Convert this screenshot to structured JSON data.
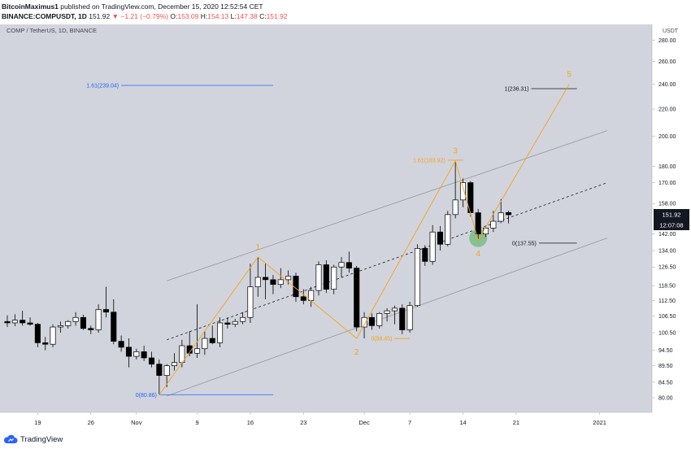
{
  "header": {
    "publisher": "BitcoinMaximus1",
    "published_text": "published on TradingView.com, December 15, 2020 12:52:54 CET",
    "symbol_line": "BINANCE:COMPUSDT, 1D",
    "last": "151.92",
    "change": "−1.21 (−0.79%)",
    "open_label": "O:",
    "open": "153.09",
    "high_label": "H:",
    "high": "154.13",
    "low_label": "L:",
    "low": "147.38",
    "close_label": "C:",
    "close": "151.92"
  },
  "footer": {
    "brand": "TradingView"
  },
  "colors": {
    "plot_bg": "#d1d4dc",
    "up": "#ffffff",
    "down": "#000000",
    "wave": "#f7a21b",
    "fib_blue": "#2962ff",
    "channel": "#9598a1",
    "label_bg": "#131722"
  },
  "chart_data": {
    "type": "candlestick",
    "title": "COMP / TetherUS, 1D, BINANCE",
    "currency": "USDT",
    "y_scale": "log",
    "ylim": [
      76,
      296
    ],
    "y_ticks": [
      80.0,
      84.5,
      89.5,
      94.5,
      100.5,
      106.5,
      112.5,
      118.5,
      126.5,
      134.0,
      142.0,
      158.0,
      170.0,
      180.0,
      200.0,
      220.0,
      240.0,
      260.0,
      280.0
    ],
    "y_tick_labels": [
      "80.00",
      "84.50",
      "89.50",
      "94.50",
      "100.50",
      "106.50",
      "112.50",
      "118.50",
      "126.50",
      "134.00",
      "142.00",
      "158.00",
      "170.00",
      "180.00",
      "200.00",
      "220.00",
      "240.00",
      "260.00",
      "280.00"
    ],
    "x_labels": [
      {
        "label": "19",
        "date": "2020-10-19"
      },
      {
        "label": "26",
        "date": "2020-10-26"
      },
      {
        "label": "Nov",
        "date": "2020-11-01"
      },
      {
        "label": "9",
        "date": "2020-11-09"
      },
      {
        "label": "16",
        "date": "2020-11-16"
      },
      {
        "label": "23",
        "date": "2020-11-23"
      },
      {
        "label": "Dec",
        "date": "2020-12-01"
      },
      {
        "label": "7",
        "date": "2020-12-07"
      },
      {
        "label": "14",
        "date": "2020-12-14"
      },
      {
        "label": "21",
        "date": "2020-12-21"
      },
      {
        "label": "2021",
        "date": "2021-01-01"
      }
    ],
    "x_range": [
      "2020-10-15",
      "2021-01-05"
    ],
    "last_price": {
      "value": "151.92",
      "countdown": "12:07:08"
    },
    "candles": [
      {
        "date": "2020-10-15",
        "o": 104.5,
        "h": 106.8,
        "l": 102.5,
        "c": 104.0
      },
      {
        "date": "2020-10-16",
        "o": 104.0,
        "h": 107.2,
        "l": 102.8,
        "c": 105.0
      },
      {
        "date": "2020-10-17",
        "o": 105.0,
        "h": 108.5,
        "l": 103.0,
        "c": 104.0
      },
      {
        "date": "2020-10-18",
        "o": 104.0,
        "h": 106.0,
        "l": 103.0,
        "c": 103.5
      },
      {
        "date": "2020-10-19",
        "o": 103.5,
        "h": 104.0,
        "l": 95.5,
        "c": 97.0
      },
      {
        "date": "2020-10-20",
        "o": 97.0,
        "h": 99.0,
        "l": 94.5,
        "c": 96.5
      },
      {
        "date": "2020-10-21",
        "o": 96.5,
        "h": 103.5,
        "l": 95.5,
        "c": 102.5
      },
      {
        "date": "2020-10-22",
        "o": 102.5,
        "h": 104.5,
        "l": 100.5,
        "c": 103.0
      },
      {
        "date": "2020-10-23",
        "o": 103.0,
        "h": 105.0,
        "l": 102.0,
        "c": 104.5
      },
      {
        "date": "2020-10-24",
        "o": 104.5,
        "h": 108.0,
        "l": 103.0,
        "c": 106.0
      },
      {
        "date": "2020-10-25",
        "o": 106.0,
        "h": 107.0,
        "l": 101.5,
        "c": 102.0
      },
      {
        "date": "2020-10-26",
        "o": 102.0,
        "h": 103.0,
        "l": 100.0,
        "c": 101.5
      },
      {
        "date": "2020-10-27",
        "o": 101.5,
        "h": 111.0,
        "l": 100.5,
        "c": 109.0
      },
      {
        "date": "2020-10-28",
        "o": 109.0,
        "h": 118.0,
        "l": 106.0,
        "c": 108.0
      },
      {
        "date": "2020-10-29",
        "o": 108.0,
        "h": 113.0,
        "l": 96.5,
        "c": 97.5
      },
      {
        "date": "2020-10-30",
        "o": 97.5,
        "h": 99.5,
        "l": 94.0,
        "c": 95.5
      },
      {
        "date": "2020-10-31",
        "o": 95.5,
        "h": 98.5,
        "l": 89.0,
        "c": 92.5
      },
      {
        "date": "2020-11-01",
        "o": 92.5,
        "h": 95.0,
        "l": 91.5,
        "c": 94.0
      },
      {
        "date": "2020-11-02",
        "o": 94.0,
        "h": 96.0,
        "l": 91.0,
        "c": 92.0
      },
      {
        "date": "2020-11-03",
        "o": 92.0,
        "h": 94.0,
        "l": 89.0,
        "c": 90.0
      },
      {
        "date": "2020-11-04",
        "o": 90.0,
        "h": 91.5,
        "l": 80.9,
        "c": 86.5
      },
      {
        "date": "2020-11-05",
        "o": 86.5,
        "h": 90.0,
        "l": 83.0,
        "c": 89.5
      },
      {
        "date": "2020-11-06",
        "o": 89.5,
        "h": 93.5,
        "l": 88.0,
        "c": 90.5
      },
      {
        "date": "2020-11-07",
        "o": 90.5,
        "h": 98.0,
        "l": 89.0,
        "c": 96.0
      },
      {
        "date": "2020-11-08",
        "o": 96.0,
        "h": 101.0,
        "l": 92.5,
        "c": 93.5
      },
      {
        "date": "2020-11-09",
        "o": 93.5,
        "h": 111.0,
        "l": 92.0,
        "c": 95.0
      },
      {
        "date": "2020-11-10",
        "o": 95.0,
        "h": 101.0,
        "l": 93.0,
        "c": 98.5
      },
      {
        "date": "2020-11-11",
        "o": 98.5,
        "h": 103.0,
        "l": 96.5,
        "c": 97.0
      },
      {
        "date": "2020-11-12",
        "o": 97.0,
        "h": 106.0,
        "l": 95.5,
        "c": 104.0
      },
      {
        "date": "2020-11-13",
        "o": 104.0,
        "h": 106.0,
        "l": 102.0,
        "c": 103.5
      },
      {
        "date": "2020-11-14",
        "o": 103.5,
        "h": 105.5,
        "l": 102.5,
        "c": 104.5
      },
      {
        "date": "2020-11-15",
        "o": 104.5,
        "h": 108.0,
        "l": 103.5,
        "c": 106.0
      },
      {
        "date": "2020-11-16",
        "o": 106.0,
        "h": 128.0,
        "l": 104.0,
        "c": 118.0
      },
      {
        "date": "2020-11-17",
        "o": 118.0,
        "h": 131.0,
        "l": 114.0,
        "c": 122.0
      },
      {
        "date": "2020-11-18",
        "o": 122.0,
        "h": 128.0,
        "l": 113.0,
        "c": 121.0
      },
      {
        "date": "2020-11-19",
        "o": 121.0,
        "h": 123.0,
        "l": 115.0,
        "c": 119.0
      },
      {
        "date": "2020-11-20",
        "o": 119.0,
        "h": 126.0,
        "l": 117.5,
        "c": 121.0
      },
      {
        "date": "2020-11-21",
        "o": 121.0,
        "h": 125.0,
        "l": 119.0,
        "c": 122.5
      },
      {
        "date": "2020-11-22",
        "o": 122.5,
        "h": 124.0,
        "l": 112.0,
        "c": 114.0
      },
      {
        "date": "2020-11-23",
        "o": 114.0,
        "h": 117.0,
        "l": 111.0,
        "c": 112.5
      },
      {
        "date": "2020-11-24",
        "o": 112.5,
        "h": 118.0,
        "l": 110.0,
        "c": 116.5
      },
      {
        "date": "2020-11-25",
        "o": 116.5,
        "h": 129.0,
        "l": 114.5,
        "c": 127.5
      },
      {
        "date": "2020-11-26",
        "o": 127.5,
        "h": 129.5,
        "l": 115.5,
        "c": 117.0
      },
      {
        "date": "2020-11-27",
        "o": 117.0,
        "h": 127.5,
        "l": 115.0,
        "c": 126.5
      },
      {
        "date": "2020-11-28",
        "o": 126.5,
        "h": 131.0,
        "l": 122.0,
        "c": 128.5
      },
      {
        "date": "2020-11-29",
        "o": 128.5,
        "h": 133.5,
        "l": 124.0,
        "c": 126.0
      },
      {
        "date": "2020-11-30",
        "o": 126.0,
        "h": 127.0,
        "l": 101.0,
        "c": 102.5
      },
      {
        "date": "2020-12-01",
        "o": 102.5,
        "h": 108.0,
        "l": 98.5,
        "c": 106.0
      },
      {
        "date": "2020-12-02",
        "o": 106.0,
        "h": 107.5,
        "l": 101.5,
        "c": 103.0
      },
      {
        "date": "2020-12-03",
        "o": 103.0,
        "h": 108.0,
        "l": 102.0,
        "c": 107.5
      },
      {
        "date": "2020-12-04",
        "o": 107.5,
        "h": 109.5,
        "l": 104.5,
        "c": 108.5
      },
      {
        "date": "2020-12-05",
        "o": 108.5,
        "h": 110.5,
        "l": 103.5,
        "c": 109.5
      },
      {
        "date": "2020-12-06",
        "o": 109.5,
        "h": 111.0,
        "l": 100.0,
        "c": 101.5
      },
      {
        "date": "2020-12-07",
        "o": 101.5,
        "h": 112.0,
        "l": 100.5,
        "c": 110.5
      },
      {
        "date": "2020-12-08",
        "o": 110.5,
        "h": 137.0,
        "l": 110.0,
        "c": 135.0
      },
      {
        "date": "2020-12-09",
        "o": 135.0,
        "h": 136.5,
        "l": 127.0,
        "c": 129.0
      },
      {
        "date": "2020-12-10",
        "o": 129.0,
        "h": 146.5,
        "l": 127.5,
        "c": 143.0
      },
      {
        "date": "2020-12-11",
        "o": 143.0,
        "h": 146.0,
        "l": 134.0,
        "c": 137.0
      },
      {
        "date": "2020-12-12",
        "o": 137.0,
        "h": 154.0,
        "l": 136.0,
        "c": 152.0
      },
      {
        "date": "2020-12-13",
        "o": 152.0,
        "h": 183.5,
        "l": 150.0,
        "c": 160.0
      },
      {
        "date": "2020-12-14",
        "o": 160.0,
        "h": 172.5,
        "l": 156.0,
        "c": 170.0
      },
      {
        "date": "2020-12-15",
        "o": 170.0,
        "h": 171.0,
        "l": 151.0,
        "c": 153.0
      },
      {
        "date": "2020-12-16",
        "o": 153.0,
        "h": 155.0,
        "l": 139.0,
        "c": 142.0
      },
      {
        "date": "2020-12-17",
        "o": 142.0,
        "h": 146.0,
        "l": 140.5,
        "c": 145.0
      },
      {
        "date": "2020-12-18",
        "o": 145.0,
        "h": 154.0,
        "l": 143.0,
        "c": 148.5
      },
      {
        "date": "2020-12-19",
        "o": 148.5,
        "h": 160.5,
        "l": 147.5,
        "c": 153.0
      },
      {
        "date": "2020-12-20",
        "o": 153.09,
        "h": 154.13,
        "l": 147.38,
        "c": 151.92
      }
    ],
    "wave_points": [
      {
        "date": "2020-11-04",
        "value": 80.86,
        "label": ""
      },
      {
        "date": "2020-11-17",
        "value": 131.0,
        "label": "1"
      },
      {
        "date": "2020-11-30",
        "value": 98.5,
        "label": "2"
      },
      {
        "date": "2020-12-13",
        "value": 183.5,
        "label": "3"
      },
      {
        "date": "2020-12-16",
        "value": 139.0,
        "label": "4"
      },
      {
        "date": "2020-12-28",
        "value": 240.0,
        "label": "5"
      }
    ],
    "fib_levels": [
      {
        "text": "1.61(239.04)",
        "value": 239.04,
        "color": "blue",
        "from": "2020-10-30",
        "to": "2020-11-19"
      },
      {
        "text": "0(80.86)",
        "value": 80.86,
        "color": "blue",
        "from": "2020-11-04",
        "to": "2020-11-19"
      },
      {
        "text": "1.61(183.92)",
        "value": 183.92,
        "color": "orange",
        "from": "2020-12-12",
        "to": "2020-12-14"
      },
      {
        "text": "0(98.45)",
        "value": 98.45,
        "color": "orange",
        "from": "2020-12-05",
        "to": "2020-12-07"
      },
      {
        "text": "1(236.31)",
        "value": 236.31,
        "color": "black",
        "from": "2020-12-23",
        "to": "2020-12-29"
      },
      {
        "text": "0(137.55)",
        "value": 137.55,
        "color": "black",
        "from": "2020-12-24",
        "to": "2020-12-29"
      }
    ],
    "channel": {
      "upper": [
        {
          "date": "2020-11-05",
          "value": 120.5
        },
        {
          "date": "2021-01-02",
          "value": 204.0
        }
      ],
      "middle": [
        {
          "date": "2020-11-05",
          "value": 98.0
        },
        {
          "date": "2021-01-02",
          "value": 170.0
        }
      ],
      "lower": [
        {
          "date": "2020-11-05",
          "value": 80.5
        },
        {
          "date": "2021-01-02",
          "value": 140.0
        }
      ]
    },
    "highlight": {
      "date": "2020-12-16",
      "value": 140.0
    }
  }
}
